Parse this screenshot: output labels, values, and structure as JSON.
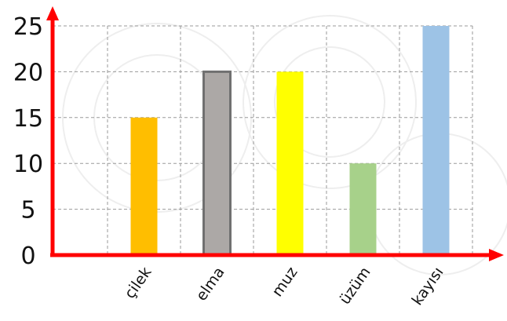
{
  "chart_data": {
    "type": "bar",
    "categories": [
      "çilek",
      "elma",
      "muz",
      "üzüm",
      "kayısı"
    ],
    "values": [
      15,
      20,
      20,
      10,
      25
    ],
    "colors": [
      "#ffbe00",
      "#aca8a6",
      "#ffff00",
      "#a7d18a",
      "#9dc3e6"
    ],
    "outlined": [
      false,
      true,
      false,
      false,
      false
    ],
    "outline_color": "#707070",
    "yticks": [
      0,
      5,
      10,
      15,
      20,
      25
    ],
    "ylim": [
      0,
      25
    ],
    "axis_color": "#ff0000",
    "grid": true,
    "title": "",
    "xlabel": "",
    "ylabel": ""
  }
}
